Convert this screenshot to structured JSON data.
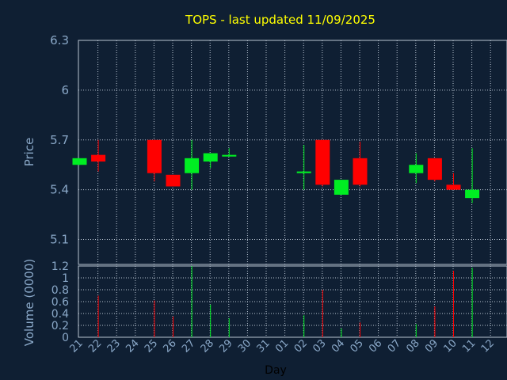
{
  "header": {
    "title": "TOPS - last updated 11/09/2025"
  },
  "colors": {
    "background": "#0f1f33",
    "up": "#00ee22",
    "down": "#ff0000",
    "grid": "#b8c4d2",
    "text": "#8aa8c8",
    "title": "#ffff00"
  },
  "chart_data": [
    {
      "type": "candlestick",
      "ylabel": "Price",
      "ylim": [
        4.95,
        6.3
      ],
      "yticks": [
        "6.3",
        "6",
        "5.7",
        "5.4",
        "5.1"
      ],
      "ytick_values": [
        6.3,
        6.0,
        5.7,
        5.4,
        5.1
      ],
      "grid": true,
      "candles": [
        {
          "x": "21",
          "open": 5.55,
          "high": 5.59,
          "low": 5.55,
          "close": 5.59
        },
        {
          "x": "22",
          "open": 5.61,
          "high": 5.7,
          "low": 5.51,
          "close": 5.57
        },
        {
          "x": "25",
          "open": 5.7,
          "high": 5.7,
          "low": 5.45,
          "close": 5.5
        },
        {
          "x": "26",
          "open": 5.49,
          "high": 5.49,
          "low": 5.42,
          "close": 5.42
        },
        {
          "x": "27",
          "open": 5.5,
          "high": 5.7,
          "low": 5.4,
          "close": 5.59
        },
        {
          "x": "28",
          "open": 5.57,
          "high": 5.62,
          "low": 5.53,
          "close": 5.62
        },
        {
          "x": "29",
          "open": 5.6,
          "high": 5.65,
          "low": 5.6,
          "close": 5.61
        },
        {
          "x": "02",
          "open": 5.5,
          "high": 5.67,
          "low": 5.4,
          "close": 5.51
        },
        {
          "x": "03",
          "open": 5.7,
          "high": 5.7,
          "low": 5.42,
          "close": 5.43
        },
        {
          "x": "04",
          "open": 5.37,
          "high": 5.46,
          "low": 5.37,
          "close": 5.46
        },
        {
          "x": "05",
          "open": 5.59,
          "high": 5.69,
          "low": 5.42,
          "close": 5.43
        },
        {
          "x": "08",
          "open": 5.5,
          "high": 5.62,
          "low": 5.44,
          "close": 5.55
        },
        {
          "x": "09",
          "open": 5.59,
          "high": 5.59,
          "low": 5.45,
          "close": 5.46
        },
        {
          "x": "10",
          "open": 5.43,
          "high": 5.5,
          "low": 5.4,
          "close": 5.4
        },
        {
          "x": "11",
          "open": 5.35,
          "high": 5.65,
          "low": 5.32,
          "close": 5.4
        }
      ]
    },
    {
      "type": "bar",
      "ylabel": "Volume (0000)",
      "xlabel": "Day",
      "ylim": [
        0,
        1.2
      ],
      "yticks": [
        "1.2",
        "1",
        "0.8",
        "0.6",
        "0.4",
        "0.2",
        "0"
      ],
      "ytick_values": [
        1.2,
        1.0,
        0.8,
        0.6,
        0.4,
        0.2,
        0
      ],
      "categories": [
        "21",
        "22",
        "23",
        "24",
        "25",
        "26",
        "27",
        "28",
        "29",
        "30",
        "31",
        "01",
        "02",
        "03",
        "04",
        "05",
        "06",
        "07",
        "08",
        "09",
        "10",
        "11",
        "12"
      ],
      "values": [
        0.0,
        0.7,
        0,
        0,
        0.62,
        0.35,
        1.2,
        0.55,
        0.32,
        0,
        0,
        0,
        0.37,
        0.8,
        0.15,
        0.25,
        0,
        0,
        0.22,
        0.52,
        1.12,
        1.17,
        0
      ],
      "bar_colors": [
        "up",
        "down",
        "",
        "",
        "down",
        "down",
        "up",
        "up",
        "up",
        "",
        "",
        "",
        "up",
        "down",
        "up",
        "down",
        "",
        "",
        "up",
        "down",
        "down",
        "up",
        ""
      ]
    }
  ]
}
